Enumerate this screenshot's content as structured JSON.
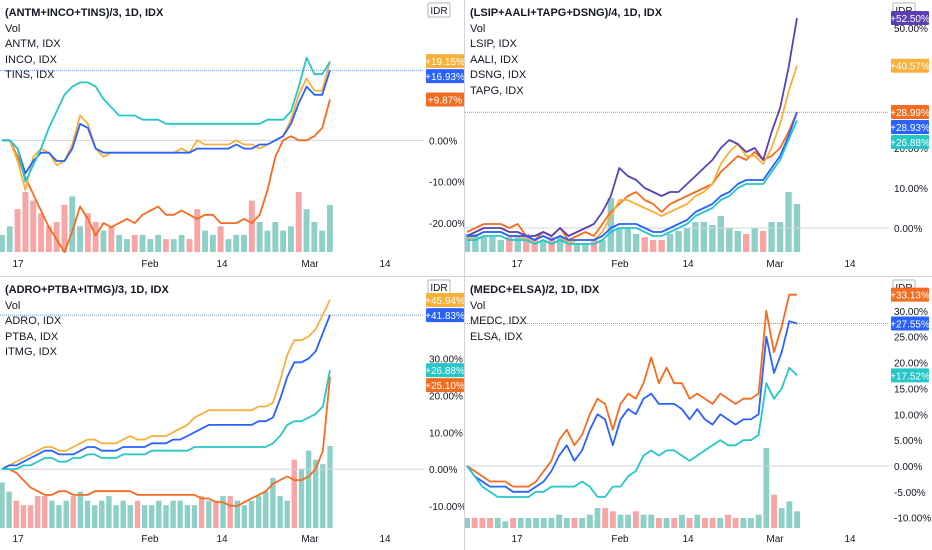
{
  "colors": {
    "orange": "#f36c20",
    "yellow": "#f5b13c",
    "blue": "#2962ff",
    "teal": "#26c6c6",
    "purple": "#5b3fb5",
    "vol_up": "#8ed0c8",
    "vol_down": "#f7a5a5",
    "grid": "#d1d4dc",
    "axis_text": "#131722"
  },
  "chart_data": [
    {
      "type": "line",
      "title": "(ANTM+INCO+TINS)/3, 1D, IDX",
      "legend": [
        "Vol",
        "ANTM, IDX",
        "INCO, IDX",
        "TINS, IDX"
      ],
      "currency_label": "IDR",
      "x_ticks": [
        "17",
        "Feb",
        "14",
        "Mar",
        "14"
      ],
      "y_ticks": [
        {
          "v": 0,
          "t": "0.00%"
        },
        {
          "v": -10,
          "t": "-10.00%"
        },
        {
          "v": -20,
          "t": "-20.00%"
        }
      ],
      "ylim": [
        -27,
        32
      ],
      "price_line": 16.93,
      "series": [
        {
          "color": "orange",
          "values": [
            0,
            0,
            -4,
            -9,
            -13,
            -17,
            -21,
            -24,
            -27,
            -22,
            -16,
            -19,
            -23,
            -20,
            -21,
            -20,
            -19,
            -20,
            -18,
            -17,
            -16,
            -18,
            -18,
            -17,
            -18,
            -19,
            -18,
            -18,
            -20,
            -20,
            -20,
            -19,
            -20,
            -18,
            -12,
            -4,
            0,
            1,
            0,
            0,
            1,
            3,
            9.87
          ]
        },
        {
          "color": "yellow",
          "values": [
            0,
            0,
            -5,
            -12,
            -4,
            -2,
            -3,
            -6,
            -5,
            -1,
            6,
            4,
            -2,
            -4,
            -3,
            -3,
            -3,
            -3,
            -3,
            -3,
            -3,
            -3,
            -3,
            -2,
            -3,
            0,
            -1,
            -1,
            -1,
            -1,
            0,
            -1,
            -1,
            -2,
            -1,
            0,
            1,
            5,
            11,
            15,
            12,
            12,
            19.15
          ]
        },
        {
          "color": "blue",
          "values": [
            0,
            0,
            -2,
            -8,
            -5,
            -3,
            -3,
            -5,
            -5,
            -2,
            4,
            3,
            -2,
            -3,
            -3,
            -3,
            -3,
            -3,
            -3,
            -3,
            -3,
            -3,
            -3,
            -3,
            -3,
            -2,
            -2,
            -2,
            -2,
            -2,
            -1,
            -2,
            -2,
            -1,
            -1,
            0,
            1,
            4,
            9,
            13,
            11,
            11,
            16.93
          ]
        },
        {
          "color": "teal",
          "values": [
            0,
            0,
            -2,
            -10,
            -6,
            -2,
            3,
            7,
            11,
            13,
            14,
            14,
            13,
            10,
            8,
            6,
            6,
            6,
            5,
            5,
            5,
            4,
            4,
            4,
            4,
            4,
            4,
            4,
            4,
            4,
            4,
            4,
            4,
            4,
            5,
            5,
            5,
            7,
            13,
            20,
            16,
            16,
            19
          ]
        }
      ],
      "value_labels": [
        {
          "text": "+19.15%",
          "value": 19.15,
          "color": "yellow"
        },
        {
          "text": "+16.93%",
          "value": 16.93,
          "color": "blue"
        },
        {
          "text": "+9.87%",
          "value": 9.87,
          "color": "orange"
        }
      ],
      "volume": [
        8,
        12,
        20,
        28,
        24,
        18,
        12,
        14,
        22,
        26,
        12,
        18,
        14,
        10,
        12,
        8,
        6,
        8,
        8,
        6,
        8,
        6,
        6,
        8,
        6,
        20,
        10,
        8,
        12,
        6,
        8,
        8,
        24,
        14,
        10,
        14,
        10,
        12,
        28,
        20,
        14,
        10,
        22
      ]
    },
    {
      "type": "line",
      "title": "(LSIP+AALI+TAPG+DSNG)/4, 1D, IDX",
      "legend": [
        "Vol",
        "LSIP, IDX",
        "AALI, IDX",
        "DSNG, IDX",
        "TAPG, IDX"
      ],
      "currency_label": "IDR",
      "x_ticks": [
        "17",
        "Feb",
        "14",
        "Mar",
        "14"
      ],
      "y_ticks": [
        {
          "v": 50,
          "t": "50.00%"
        },
        {
          "v": 40,
          "t": "40.00%"
        },
        {
          "v": 20,
          "t": "20.00%"
        },
        {
          "v": 10,
          "t": "10.00%"
        },
        {
          "v": 0,
          "t": "0.00%"
        }
      ],
      "ylim": [
        -6,
        55
      ],
      "price_line": 28.93,
      "series": [
        {
          "color": "orange",
          "values": [
            -1,
            0,
            1,
            1,
            1,
            0,
            1,
            -2,
            -3,
            -1,
            -2,
            0,
            -3,
            -2,
            -1,
            -2,
            1,
            4,
            6,
            8,
            9,
            7,
            6,
            4,
            6,
            7,
            8,
            9,
            10,
            11,
            14,
            16,
            18,
            17,
            19,
            17,
            18,
            20,
            24,
            28.99
          ]
        },
        {
          "color": "yellow",
          "values": [
            -3,
            -2,
            -1,
            -1,
            -1,
            -2,
            -2,
            -3,
            -3,
            -2,
            -3,
            -2,
            -4,
            -3,
            -3,
            -3,
            -1,
            3,
            7,
            7,
            6,
            5,
            4,
            3,
            4,
            5,
            6,
            8,
            9,
            11,
            16,
            19,
            21,
            18,
            18,
            16,
            20,
            26,
            34,
            40.57
          ]
        },
        {
          "color": "purple",
          "values": [
            -2,
            -1,
            0,
            0,
            0,
            -1,
            -1,
            -2,
            -2,
            -1,
            -2,
            0,
            -2,
            -1,
            0,
            1,
            4,
            8,
            15,
            13,
            12,
            10,
            9,
            8,
            9,
            9,
            11,
            13,
            15,
            17,
            20,
            22,
            21,
            19,
            20,
            17,
            24,
            30,
            40,
            52.5
          ]
        },
        {
          "color": "blue",
          "values": [
            -2,
            -2,
            -1,
            -1,
            -1,
            -2,
            -2,
            -2,
            -3,
            -2,
            -3,
            -2,
            -3,
            -3,
            -3,
            -3,
            -2,
            0,
            1,
            1,
            1,
            0,
            -1,
            -1,
            0,
            1,
            2,
            4,
            5,
            6,
            8,
            9,
            11,
            12,
            12,
            12,
            15,
            18,
            23,
            28.93
          ]
        },
        {
          "color": "teal",
          "values": [
            -3,
            -3,
            -2,
            -2,
            -2,
            -3,
            -3,
            -3,
            -4,
            -3,
            -4,
            -3,
            -4,
            -4,
            -4,
            -4,
            -3,
            -1,
            0,
            0,
            0,
            -1,
            -2,
            -2,
            -1,
            0,
            1,
            3,
            4,
            5,
            7,
            8,
            10,
            11,
            11,
            11,
            14,
            17,
            22,
            26.88
          ]
        }
      ],
      "value_labels": [
        {
          "text": "+52.50%",
          "value": 52.5,
          "color": "purple"
        },
        {
          "text": "+40.57%",
          "value": 40.57,
          "color": "yellow"
        },
        {
          "text": "+28.99%",
          "value": 28.99,
          "color": "orange"
        },
        {
          "text": "+28.93%",
          "value": 28.93,
          "color": "blue"
        },
        {
          "text": "+26.88%",
          "value": 26.88,
          "color": "teal"
        }
      ],
      "volume": [
        6,
        6,
        5,
        5,
        4,
        5,
        5,
        6,
        4,
        4,
        5,
        5,
        4,
        3,
        3,
        4,
        4,
        18,
        8,
        8,
        6,
        5,
        4,
        4,
        6,
        7,
        8,
        10,
        10,
        9,
        12,
        8,
        7,
        6,
        8,
        7,
        10,
        10,
        20,
        16
      ]
    },
    {
      "type": "line",
      "title": "(ADRO+PTBA+ITMG)/3, 1D, IDX",
      "legend": [
        "Vol",
        "ADRO, IDX",
        "PTBA, IDX",
        "ITMG, IDX"
      ],
      "currency_label": "IDR",
      "x_ticks": [
        "17",
        "Feb",
        "14",
        "Mar",
        "14"
      ],
      "y_ticks": [
        {
          "v": 30,
          "t": "30.00%"
        },
        {
          "v": 20,
          "t": "20.00%"
        },
        {
          "v": 10,
          "t": "10.00%"
        },
        {
          "v": 0,
          "t": "0.00%"
        },
        {
          "v": -10,
          "t": "-10.00%"
        }
      ],
      "ylim": [
        -16,
        50
      ],
      "price_line": 41.83,
      "series": [
        {
          "color": "orange",
          "values": [
            0,
            0,
            -1,
            -3,
            -5,
            -6,
            -7,
            -7,
            -6,
            -6,
            -7,
            -7,
            -7,
            -6,
            -6,
            -6,
            -6,
            -6,
            -6,
            -7,
            -7,
            -7,
            -7,
            -7,
            -7,
            -7,
            -7,
            -7,
            -8,
            -8,
            -9,
            -9,
            -10,
            -10,
            -9,
            -8,
            -7,
            -6,
            -4,
            -3,
            -2,
            -3,
            -3,
            -2,
            0,
            5,
            25.1
          ]
        },
        {
          "color": "yellow",
          "values": [
            0,
            1,
            2,
            3,
            4,
            5,
            6,
            6,
            5,
            5,
            6,
            7,
            8,
            8,
            7,
            7,
            7,
            8,
            9,
            8,
            8,
            9,
            9,
            9,
            10,
            11,
            12,
            14,
            15,
            16,
            16,
            16,
            16,
            16,
            16,
            16,
            17,
            17,
            18,
            24,
            31,
            35,
            35,
            36,
            38,
            42,
            45.94
          ]
        },
        {
          "color": "blue",
          "values": [
            0,
            1,
            1,
            2,
            3,
            4,
            5,
            5,
            4,
            4,
            4,
            5,
            6,
            6,
            5,
            5,
            5,
            6,
            6,
            6,
            6,
            7,
            7,
            7,
            8,
            8,
            9,
            10,
            11,
            12,
            12,
            12,
            12,
            12,
            12,
            12,
            13,
            13,
            14,
            19,
            25,
            29,
            29,
            30,
            32,
            37,
            41.83
          ]
        },
        {
          "color": "teal",
          "values": [
            0,
            0,
            0,
            1,
            1,
            2,
            3,
            3,
            2,
            2,
            3,
            3,
            4,
            4,
            3,
            3,
            3,
            4,
            4,
            4,
            4,
            5,
            5,
            5,
            5,
            5,
            5,
            6,
            6,
            6,
            6,
            6,
            6,
            6,
            6,
            6,
            6,
            6,
            7,
            9,
            12,
            13,
            13,
            14,
            15,
            17,
            26.88
          ]
        }
      ],
      "value_labels": [
        {
          "text": "+45.94%",
          "value": 45.94,
          "color": "yellow"
        },
        {
          "text": "+41.83%",
          "value": 41.83,
          "color": "blue"
        },
        {
          "text": "+26.88%",
          "value": 26.88,
          "color": "teal"
        },
        {
          "text": "+25.10%",
          "value": 25.1,
          "color": "orange"
        }
      ],
      "volume": [
        20,
        16,
        12,
        10,
        10,
        14,
        14,
        12,
        10,
        12,
        14,
        16,
        12,
        10,
        12,
        14,
        10,
        12,
        10,
        12,
        10,
        10,
        12,
        10,
        12,
        12,
        10,
        10,
        14,
        12,
        12,
        14,
        14,
        12,
        10,
        12,
        14,
        16,
        22,
        14,
        12,
        30,
        26,
        34,
        30,
        28,
        36
      ]
    },
    {
      "type": "line",
      "title": "(MEDC+ELSA)/2, 1D, IDX",
      "legend": [
        "Vol",
        "MEDC, IDX",
        "ELSA, IDX"
      ],
      "currency_label": "IDR",
      "x_ticks": [
        "17",
        "Feb",
        "14",
        "Mar",
        "14"
      ],
      "y_ticks": [
        {
          "v": 30,
          "t": "30.00%"
        },
        {
          "v": 25,
          "t": "25.00%"
        },
        {
          "v": 20,
          "t": "20.00%"
        },
        {
          "v": 15,
          "t": "15.00%"
        },
        {
          "v": 10,
          "t": "10.00%"
        },
        {
          "v": 5,
          "t": "5.00%"
        },
        {
          "v": 0,
          "t": "0.00%"
        },
        {
          "v": -5,
          "t": "-5.00%"
        },
        {
          "v": -10,
          "t": "-10.00%"
        }
      ],
      "ylim": [
        -12,
        35
      ],
      "price_line": 27.55,
      "series": [
        {
          "color": "orange",
          "values": [
            0,
            -1,
            -2,
            -3,
            -3,
            -3,
            -4,
            -4,
            -4,
            -3,
            -1,
            1,
            5,
            7,
            4,
            6,
            10,
            13,
            12,
            7,
            12,
            14,
            13,
            16,
            21,
            16,
            19,
            16,
            16,
            13,
            14,
            13,
            12,
            14,
            13,
            12,
            13,
            13,
            14,
            30,
            22,
            27,
            33.13,
            33.13
          ]
        },
        {
          "color": "blue",
          "values": [
            0,
            -2,
            -3,
            -4,
            -4,
            -4,
            -5,
            -5,
            -5,
            -4,
            -3,
            -1,
            2,
            4,
            1,
            3,
            7,
            10,
            9,
            4,
            9,
            11,
            10,
            13,
            14,
            12,
            12,
            12,
            11,
            9,
            11,
            9,
            8,
            10,
            9,
            8,
            9,
            9,
            10,
            25,
            18,
            22,
            28,
            27.55
          ]
        },
        {
          "color": "teal",
          "values": [
            0,
            -2,
            -4,
            -5,
            -6,
            -6,
            -6,
            -6,
            -6,
            -5,
            -5,
            -4,
            -4,
            -4,
            -4,
            -3,
            -4,
            -6,
            -6,
            -4,
            -4,
            -2,
            -1,
            2,
            3,
            2,
            3,
            3,
            2,
            1,
            2,
            3,
            4,
            5,
            4,
            4,
            5,
            5,
            6,
            16,
            13,
            15,
            19,
            17.52
          ]
        }
      ],
      "value_labels": [
        {
          "text": "+33.13%",
          "value": 33.13,
          "color": "orange"
        },
        {
          "text": "+27.55%",
          "value": 27.55,
          "color": "blue"
        },
        {
          "text": "+17.52%",
          "value": 17.52,
          "color": "teal"
        }
      ],
      "volume": [
        3,
        3,
        3,
        3,
        3,
        2,
        3,
        3,
        3,
        3,
        3,
        3,
        4,
        3,
        3,
        3,
        4,
        6,
        6,
        5,
        4,
        4,
        5,
        4,
        4,
        3,
        3,
        3,
        4,
        3,
        4,
        3,
        3,
        3,
        4,
        3,
        3,
        3,
        4,
        24,
        10,
        6,
        8,
        5
      ]
    }
  ]
}
